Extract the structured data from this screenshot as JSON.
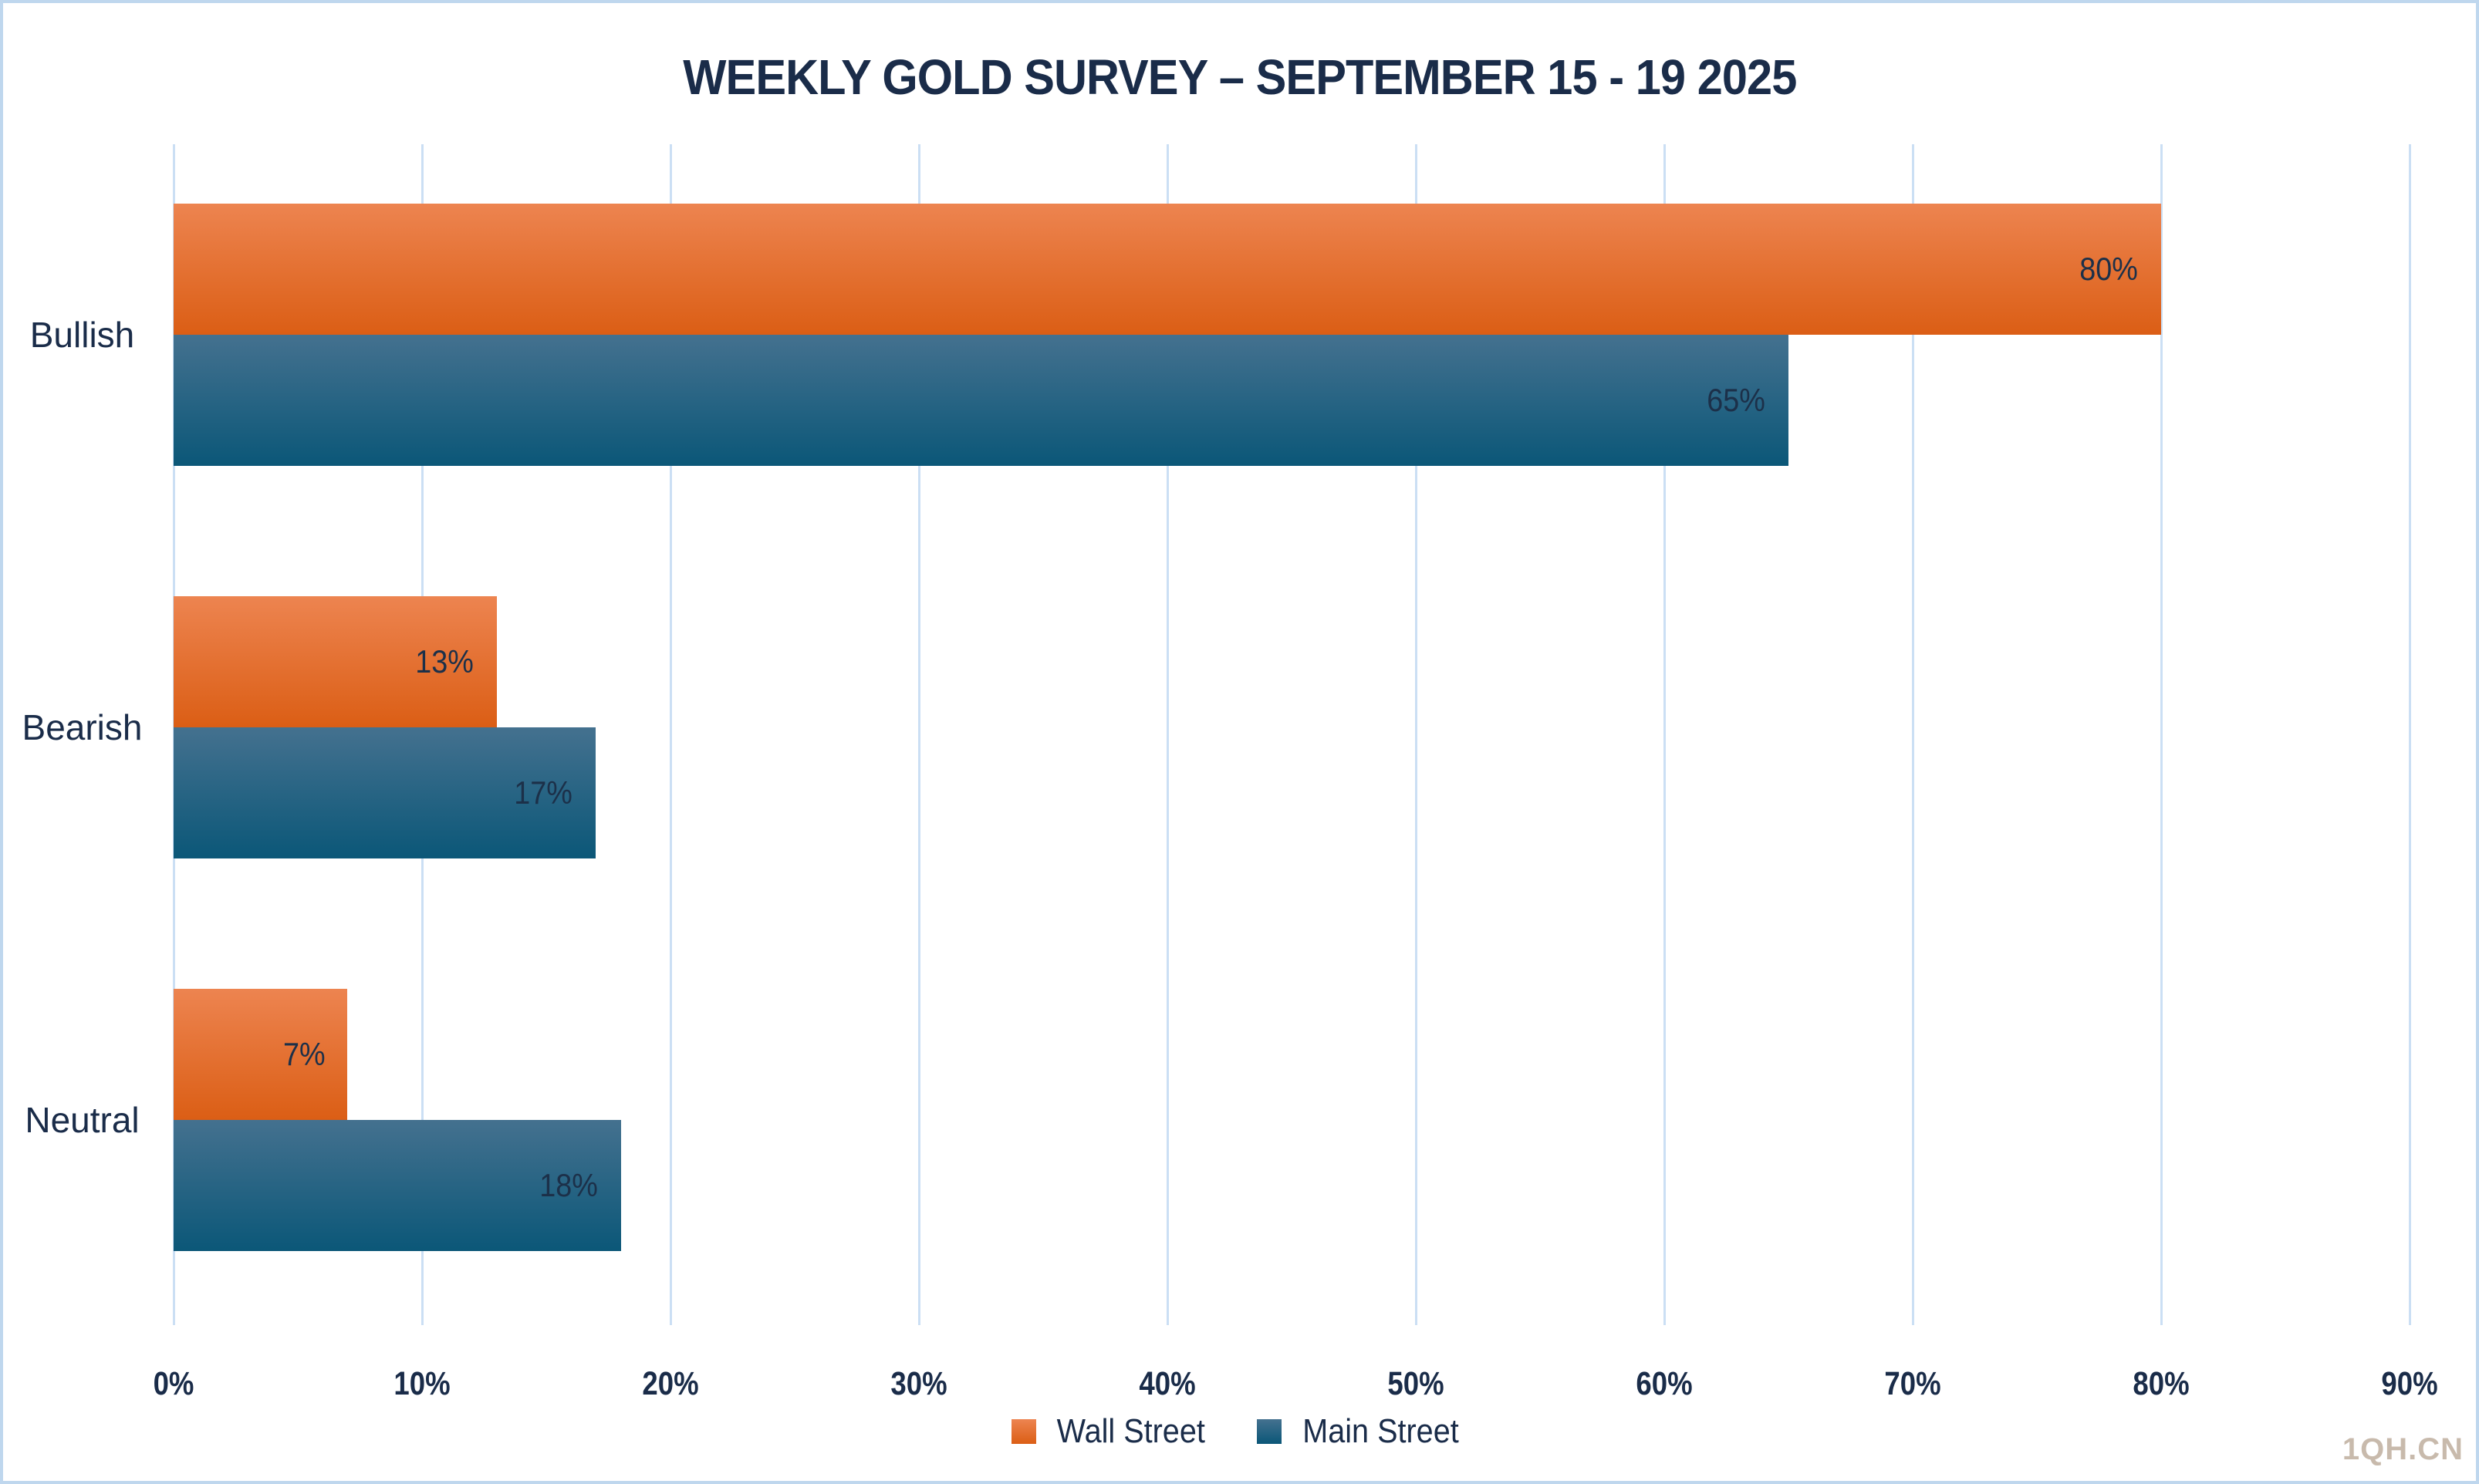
{
  "chart": {
    "title": "WEEKLY GOLD SURVEY – SEPTEMBER 15 - 19 2025",
    "watermark": "1QH.CN"
  },
  "chart_data": {
    "type": "bar",
    "orientation": "horizontal",
    "title": "WEEKLY GOLD SURVEY – SEPTEMBER 15 - 19 2025",
    "categories": [
      "Bullish",
      "Bearish",
      "Neutral"
    ],
    "series": [
      {
        "name": "Wall Street",
        "values": [
          80,
          13,
          7
        ]
      },
      {
        "name": "Main Street",
        "values": [
          65,
          17,
          18
        ]
      }
    ],
    "data_labels": [
      [
        "80%",
        "13%",
        "7%"
      ],
      [
        "65%",
        "17%",
        "18%"
      ]
    ],
    "xlabel": "",
    "ylabel": "",
    "xlim": [
      0,
      90
    ],
    "xtick_step": 10,
    "xtick_labels": [
      "0%",
      "10%",
      "20%",
      "30%",
      "40%",
      "50%",
      "60%",
      "70%",
      "80%",
      "90%"
    ],
    "grid": true,
    "legend_position": "bottom",
    "colors": {
      "wall_street_top": "#ED8450",
      "wall_street_bottom": "#DB5E15",
      "main_street_top": "#44718F",
      "main_street_bottom": "#0B5778",
      "text_navy": "#1A2C49",
      "bar_label": "#1C3049",
      "gridline": "#CBDFF4",
      "frame_border": "#BFD7EE",
      "watermark": "#C8BAAC"
    }
  }
}
